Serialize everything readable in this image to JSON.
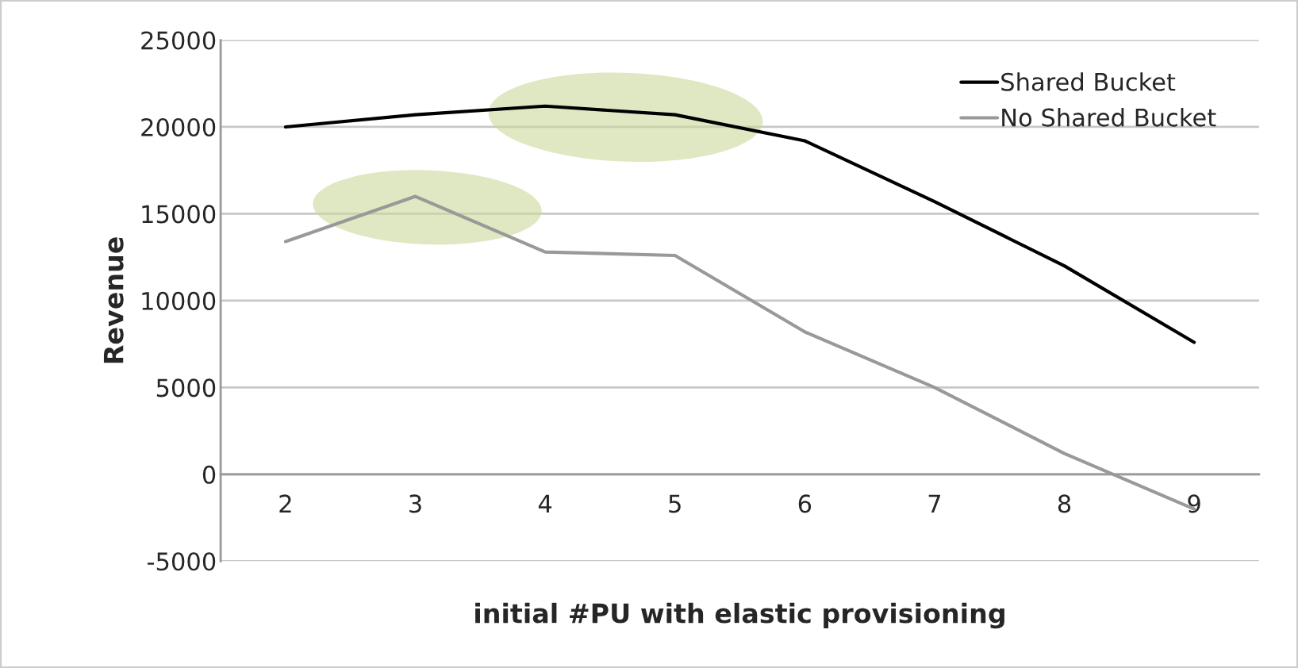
{
  "chart_data": {
    "type": "line",
    "xlabel": "initial #PU with elastic provisioning",
    "ylabel": "Revenue",
    "categories": [
      "2",
      "3",
      "4",
      "5",
      "6",
      "7",
      "8",
      "9"
    ],
    "series": [
      {
        "name": "Shared Bucket",
        "color": "#000000",
        "values": [
          20000,
          20700,
          21200,
          20700,
          19200,
          15700,
          12000,
          7600
        ]
      },
      {
        "name": "No Shared Bucket",
        "color": "#999999",
        "values": [
          13400,
          16000,
          12800,
          12600,
          8200,
          5000,
          1200,
          -2000
        ]
      }
    ],
    "ylim": [
      -5000,
      25000
    ],
    "yticks": [
      -5000,
      0,
      5000,
      10000,
      15000,
      20000,
      25000
    ],
    "grid": "y",
    "legend": "top right",
    "marker": "none",
    "line_style": "solid"
  }
}
